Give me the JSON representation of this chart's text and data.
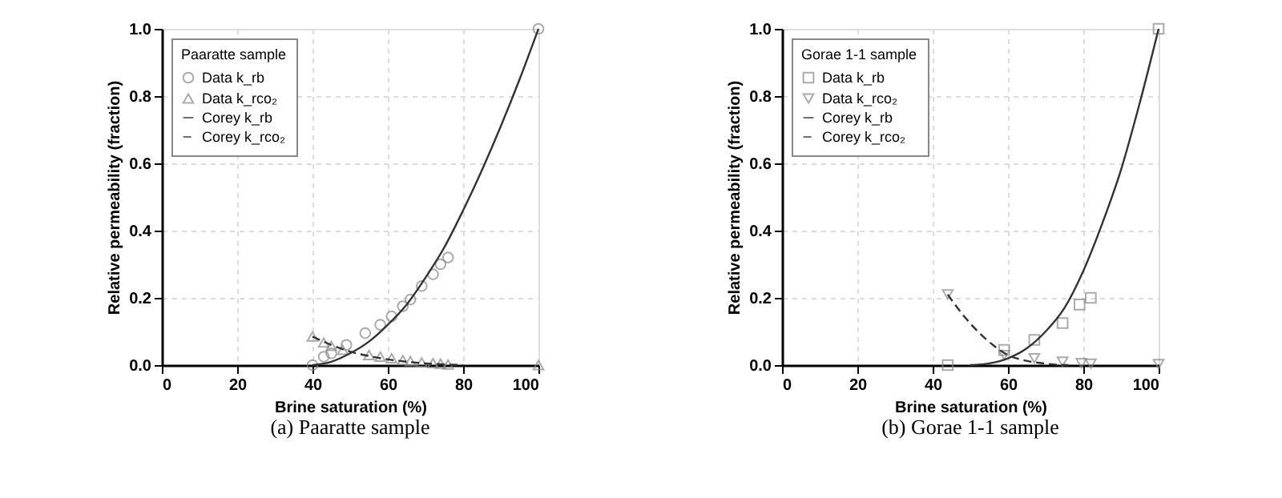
{
  "chart_data": [
    {
      "type": "scatter",
      "title": "(a) Paaratte sample",
      "xlabel": "Brine saturation (%)",
      "ylabel": "Relative permeability (fraction)",
      "legend_title": "Paaratte sample",
      "legend": "top left",
      "grid": true,
      "xlim": [
        0,
        100
      ],
      "xticks": [
        0,
        20,
        40,
        60,
        80,
        100
      ],
      "ylim": [
        0,
        1
      ],
      "yticks": [
        {
          "value": 0,
          "label": "0.0"
        },
        {
          "value": 0.2,
          "label": "0.2"
        },
        {
          "value": 0.4,
          "label": "0.4"
        },
        {
          "value": 0.6,
          "label": "0.6"
        },
        {
          "value": 0.8,
          "label": "0.8"
        },
        {
          "value": 1,
          "label": "1.0"
        }
      ],
      "series": [
        {
          "name": "Data k_rb",
          "type": "scatter",
          "marker": "circle",
          "color": "#888888",
          "x": [
            40,
            43,
            45,
            49,
            54,
            58,
            61,
            64,
            66,
            69,
            72,
            74,
            76,
            100
          ],
          "values": [
            0,
            0.025,
            0.035,
            0.06,
            0.095,
            0.12,
            0.145,
            0.175,
            0.195,
            0.235,
            0.27,
            0.3,
            0.32,
            1.0
          ]
        },
        {
          "name": "Data k_rco₂",
          "type": "scatter",
          "marker": "triangle",
          "color": "#888888",
          "x": [
            40,
            43,
            45,
            48,
            55,
            58,
            61,
            64,
            66,
            69,
            72,
            74,
            76,
            100
          ],
          "values": [
            0.085,
            0.067,
            0.057,
            0.045,
            0.03,
            0.025,
            0.02,
            0.015,
            0.012,
            0.008,
            0.006,
            0.004,
            0.002,
            0
          ]
        },
        {
          "name": "Corey k_rb",
          "type": "line",
          "line_style": "solid",
          "color": "#333333",
          "x": [
            40,
            45,
            50,
            55,
            60,
            65,
            70,
            75,
            80,
            85,
            90,
            95,
            100
          ],
          "values": [
            0,
            0.01,
            0.035,
            0.07,
            0.12,
            0.18,
            0.26,
            0.35,
            0.46,
            0.58,
            0.71,
            0.85,
            1.0
          ]
        },
        {
          "name": "Corey k_rco₂",
          "type": "line",
          "line_style": "dashed",
          "color": "#333333",
          "x": [
            40,
            45,
            50,
            55,
            60,
            65,
            70,
            75,
            80
          ],
          "values": [
            0.085,
            0.06,
            0.04,
            0.027,
            0.017,
            0.01,
            0.005,
            0.002,
            0
          ]
        }
      ]
    },
    {
      "type": "scatter",
      "title": "(b) Gorae 1-1 sample",
      "xlabel": "Brine saturation (%)",
      "ylabel": "Relative permeability (fraction)",
      "legend_title": "Gorae 1-1 sample",
      "legend": "top left",
      "grid": true,
      "xlim": [
        0,
        100
      ],
      "xticks": [
        0,
        20,
        40,
        60,
        80,
        100
      ],
      "ylim": [
        0,
        1
      ],
      "yticks": [
        {
          "value": 0,
          "label": "0.0"
        },
        {
          "value": 0.2,
          "label": "0.2"
        },
        {
          "value": 0.4,
          "label": "0.4"
        },
        {
          "value": 0.6,
          "label": "0.6"
        },
        {
          "value": 0.8,
          "label": "0.8"
        },
        {
          "value": 1,
          "label": "1.0"
        }
      ],
      "series": [
        {
          "name": "Data k_rb",
          "type": "scatter",
          "marker": "square",
          "color": "#888888",
          "x": [
            44,
            59,
            67,
            74.5,
            79,
            82,
            100
          ],
          "values": [
            0,
            0.045,
            0.075,
            0.125,
            0.18,
            0.2,
            1.0
          ]
        },
        {
          "name": "Data k_rco₂",
          "type": "scatter",
          "marker": "triangle-down",
          "color": "#888888",
          "x": [
            44,
            59,
            67,
            74.5,
            79.5,
            82,
            100
          ],
          "values": [
            0.21,
            0.03,
            0.02,
            0.01,
            0.006,
            0.004,
            0.003
          ]
        },
        {
          "name": "Corey k_rb",
          "type": "line",
          "line_style": "solid",
          "color": "#333333",
          "x": [
            50,
            55,
            60,
            65,
            70,
            75,
            80,
            85,
            90,
            95,
            100
          ],
          "values": [
            0,
            0.005,
            0.02,
            0.05,
            0.1,
            0.17,
            0.28,
            0.42,
            0.58,
            0.78,
            1.0
          ]
        },
        {
          "name": "Corey k_rco₂",
          "type": "line",
          "line_style": "dashed",
          "color": "#333333",
          "x": [
            44,
            48,
            52,
            56,
            60,
            64,
            68,
            72,
            76
          ],
          "values": [
            0.21,
            0.15,
            0.1,
            0.06,
            0.03,
            0.015,
            0.007,
            0.002,
            0
          ]
        }
      ]
    }
  ]
}
